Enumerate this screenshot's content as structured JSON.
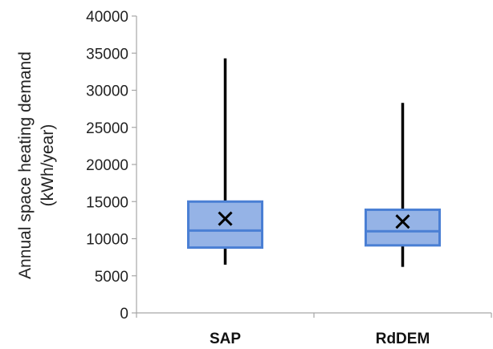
{
  "chart_data": {
    "type": "box",
    "ylabel_lines": [
      "Annual space heating demand",
      "(kWh/year)"
    ],
    "ylim": [
      0,
      40000
    ],
    "yticks": [
      0,
      5000,
      10000,
      15000,
      20000,
      25000,
      30000,
      35000,
      40000
    ],
    "ytick_labels": [
      "0",
      "5000",
      "10000",
      "15000",
      "20000",
      "25000",
      "30000",
      "35000",
      "40000"
    ],
    "categories": [
      "SAP",
      "RdDEM"
    ],
    "boxes": [
      {
        "category": "SAP",
        "min": 6500,
        "q1": 8800,
        "median": 11100,
        "q3": 15000,
        "max": 34300,
        "mean": 12700
      },
      {
        "category": "RdDEM",
        "min": 6200,
        "q1": 9100,
        "median": 11000,
        "q3": 13900,
        "max": 28300,
        "mean": 12300
      }
    ],
    "grid": false,
    "legend": "none",
    "colors": {
      "box_fill": "#95b3e6",
      "box_stroke": "#4a7fd4",
      "whisker": "#000000",
      "mean_marker": "#000000",
      "axis": "#a6a6a6"
    }
  }
}
